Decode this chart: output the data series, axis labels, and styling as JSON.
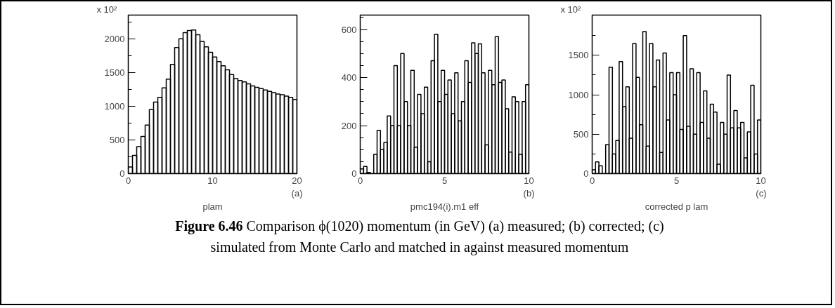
{
  "chart_data": [
    {
      "type": "histogram",
      "xlabel": "plam",
      "ylabel": "x 10²",
      "annotations": [
        "(a)",
        "Figure 6.46 Comparison ϕ(1020)  momentum (in GeV) (a) measured; (b) corrected; (c)",
        "simulated from Monte Carlo and matched in against measured momentum"
      ],
      "bins": [
        0,
        0.5,
        1,
        1.5,
        2,
        2.5,
        3,
        3.5,
        4,
        4.5,
        5,
        5.5,
        6,
        6.5,
        7,
        7.5,
        8,
        8.5,
        9,
        9.5,
        10,
        10.5,
        11,
        11.5,
        12,
        12.5,
        13,
        13.5,
        14,
        14.5,
        15,
        15.5,
        16,
        16.5,
        17,
        17.5,
        18,
        18.5,
        19,
        19.5,
        20
      ],
      "values": [
        100,
        270,
        400,
        550,
        720,
        950,
        1060,
        1130,
        1270,
        1400,
        1620,
        1870,
        2000,
        2090,
        2120,
        2130,
        2060,
        1960,
        1880,
        1800,
        1730,
        1660,
        1600,
        1540,
        1470,
        1410,
        1380,
        1360,
        1330,
        1300,
        1280,
        1260,
        1240,
        1220,
        1200,
        1180,
        1170,
        1150,
        1130,
        1100
      ],
      "color": "#000000",
      "xlim": [
        0,
        20
      ],
      "ylim": [
        0,
        2350
      ],
      "xticks": [
        0,
        {
          "value": 2,
          "label": null
        },
        {
          "value": 4,
          "label": null
        },
        {
          "value": 6,
          "label": null
        },
        {
          "value": 8,
          "label": null
        },
        10,
        {
          "value": 12,
          "label": null
        },
        {
          "value": 14,
          "label": null
        },
        {
          "value": 16,
          "label": null
        },
        {
          "value": 18,
          "label": null
        },
        20
      ],
      "yticks": [
        0,
        {
          "value": 250,
          "label": null
        },
        500,
        {
          "value": 750,
          "label": null
        },
        1000,
        {
          "value": 1250,
          "label": null
        },
        1500,
        {
          "value": 1750,
          "label": null
        },
        2000,
        {
          "value": 2250,
          "label": null
        }
      ],
      "grid": false
    },
    {
      "type": "histogram",
      "xlabel": "pmc194(i).m1 eff",
      "annotations": [
        "(b)"
      ],
      "bins": [
        0,
        0.2,
        0.4,
        0.6,
        0.8,
        1,
        1.2,
        1.4,
        1.6,
        1.8,
        2,
        2.2,
        2.4,
        2.6,
        2.8,
        3,
        3.2,
        3.4,
        3.6,
        3.8,
        4,
        4.2,
        4.4,
        4.6,
        4.8,
        5,
        5.2,
        5.4,
        5.6,
        5.8,
        6,
        6.2,
        6.4,
        6.6,
        6.8,
        7,
        7.2,
        7.4,
        7.6,
        7.8,
        8,
        8.2,
        8.4,
        8.6,
        8.8,
        9,
        9.2,
        9.4,
        9.6,
        9.8,
        10
      ],
      "values": [
        20,
        30,
        5,
        0,
        80,
        180,
        100,
        130,
        240,
        200,
        450,
        200,
        500,
        300,
        200,
        430,
        110,
        330,
        250,
        360,
        50,
        470,
        580,
        300,
        430,
        330,
        390,
        250,
        420,
        220,
        300,
        470,
        380,
        545,
        500,
        540,
        420,
        120,
        430,
        370,
        570,
        380,
        390,
        270,
        90,
        320,
        300,
        80,
        300,
        370
      ],
      "color": "#000000",
      "xlim": [
        0,
        10
      ],
      "ylim": [
        0,
        660
      ],
      "xticks": [
        0,
        {
          "value": 1,
          "label": null
        },
        {
          "value": 2,
          "label": null
        },
        {
          "value": 3,
          "label": null
        },
        {
          "value": 4,
          "label": null
        },
        5,
        {
          "value": 6,
          "label": null
        },
        {
          "value": 7,
          "label": null
        },
        {
          "value": 8,
          "label": null
        },
        {
          "value": 9,
          "label": null
        },
        10
      ],
      "yticks": [
        0,
        {
          "value": 50,
          "label": null
        },
        {
          "value": 100,
          "label": null
        },
        {
          "value": 150,
          "label": null
        },
        200,
        {
          "value": 250,
          "label": null
        },
        {
          "value": 300,
          "label": null
        },
        {
          "value": 350,
          "label": null
        },
        400,
        {
          "value": 450,
          "label": null
        },
        {
          "value": 500,
          "label": null
        },
        {
          "value": 550,
          "label": null
        },
        600,
        {
          "value": 650,
          "label": null
        }
      ],
      "grid": false
    },
    {
      "type": "histogram",
      "xlabel": "corrected p lam",
      "ylabel": "x 10²",
      "annotations": [
        "(c)"
      ],
      "bins": [
        0,
        0.2,
        0.4,
        0.6,
        0.8,
        1,
        1.2,
        1.4,
        1.6,
        1.8,
        2,
        2.2,
        2.4,
        2.6,
        2.8,
        3,
        3.2,
        3.4,
        3.6,
        3.8,
        4,
        4.2,
        4.4,
        4.6,
        4.8,
        5,
        5.2,
        5.4,
        5.6,
        5.8,
        6,
        6.2,
        6.4,
        6.6,
        6.8,
        7,
        7.2,
        7.4,
        7.6,
        7.8,
        8,
        8.2,
        8.4,
        8.6,
        8.8,
        9,
        9.2,
        9.4,
        9.6,
        9.8,
        10
      ],
      "values": [
        50,
        150,
        100,
        0,
        370,
        1350,
        250,
        420,
        1420,
        850,
        1100,
        450,
        1650,
        1220,
        620,
        1800,
        350,
        1650,
        1100,
        1440,
        270,
        1530,
        680,
        1280,
        1000,
        1280,
        560,
        1750,
        600,
        1330,
        500,
        1280,
        650,
        1050,
        450,
        880,
        780,
        120,
        650,
        500,
        1250,
        580,
        800,
        580,
        650,
        200,
        530,
        1120,
        250,
        680
      ],
      "color": "#000000",
      "xlim": [
        0,
        10
      ],
      "ylim": [
        0,
        2010
      ],
      "xticks": [
        0,
        {
          "value": 1,
          "label": null
        },
        {
          "value": 2,
          "label": null
        },
        {
          "value": 3,
          "label": null
        },
        {
          "value": 4,
          "label": null
        },
        5,
        {
          "value": 6,
          "label": null
        },
        {
          "value": 7,
          "label": null
        },
        {
          "value": 8,
          "label": null
        },
        {
          "value": 9,
          "label": null
        },
        10
      ],
      "yticks": [
        0,
        {
          "value": 250,
          "label": null
        },
        500,
        {
          "value": 750,
          "label": null
        },
        1000,
        {
          "value": 1250,
          "label": null
        },
        1500,
        {
          "value": 1750,
          "label": null
        }
      ],
      "grid": false
    }
  ]
}
